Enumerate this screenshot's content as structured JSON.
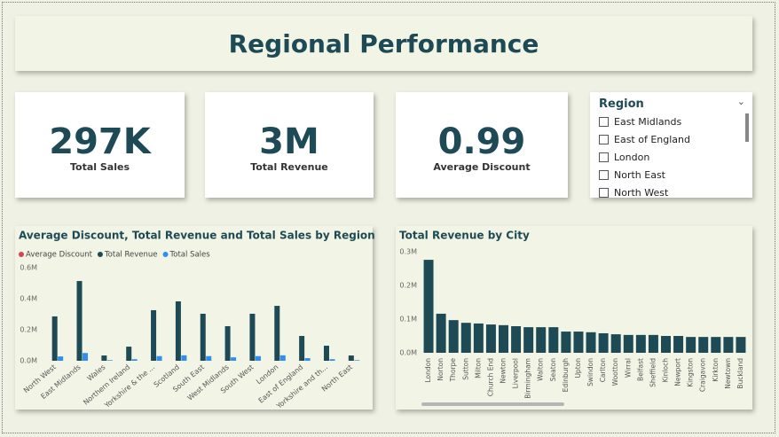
{
  "title": "Regional Performance",
  "cards": [
    {
      "value": "297K",
      "label": "Total Sales"
    },
    {
      "value": "3M",
      "label": "Total Revenue"
    },
    {
      "value": "0.99",
      "label": "Average Discount"
    }
  ],
  "slicer": {
    "title": "Region",
    "items": [
      "East Midlands",
      "East of England",
      "London",
      "North East",
      "North West"
    ]
  },
  "chart_data": [
    {
      "type": "bar",
      "title": "Average Discount, Total Revenue and Total Sales by Region",
      "categories": [
        "North West",
        "East Midlands",
        "Wales",
        "Northern Ireland",
        "Yorkshire & the ...",
        "Scotland",
        "South East",
        "West Midlands",
        "South West",
        "London",
        "East of England",
        "Yorkshire and th...",
        "North East"
      ],
      "series": [
        {
          "name": "Average Discount",
          "color": "#d64550",
          "values": [
            1,
            1,
            1,
            1,
            1,
            1,
            1,
            1,
            1,
            1,
            1,
            1,
            1
          ]
        },
        {
          "name": "Total Revenue",
          "color": "#1e4a56",
          "values": [
            286000,
            514000,
            34000,
            91000,
            326000,
            383000,
            303000,
            223000,
            303000,
            354000,
            160000,
            97000,
            34000
          ]
        },
        {
          "name": "Total Sales",
          "color": "#2f8ff0",
          "values": [
            28000,
            50000,
            4000,
            10000,
            30000,
            35000,
            30000,
            22000,
            30000,
            35000,
            17000,
            10000,
            4000
          ]
        }
      ],
      "ylim": [
        0,
        600000
      ],
      "yticks": [
        {
          "value": 0,
          "label": "0.0M"
        },
        {
          "value": 200000,
          "label": "0.2M"
        },
        {
          "value": 400000,
          "label": "0.4M"
        },
        {
          "value": 600000,
          "label": "0.6M"
        }
      ]
    },
    {
      "type": "bar",
      "title": "Total Revenue by City",
      "categories": [
        "London",
        "Norton",
        "Thorpe",
        "Sutton",
        "Milton",
        "Church End",
        "Newton",
        "Liverpool",
        "Birmingham",
        "Walton",
        "Seaton",
        "Edinburgh",
        "Upton",
        "Swindon",
        "Carlton",
        "Wootton",
        "Wirral",
        "Belfast",
        "Sheffield",
        "Kinloch",
        "Newport",
        "Kingston",
        "Craigavon",
        "Kirkton",
        "Newtown",
        "Buckland"
      ],
      "series": [
        {
          "name": "Total Revenue",
          "color": "#1e4a56",
          "values": [
            276000,
            116000,
            97000,
            89000,
            87000,
            84000,
            82000,
            79000,
            76000,
            76000,
            76000,
            63000,
            63000,
            61000,
            58000,
            55000,
            53000,
            53000,
            53000,
            50000,
            50000,
            47000,
            47000,
            47000,
            47000,
            47000
          ]
        }
      ],
      "ylim": [
        0,
        300000
      ],
      "yticks": [
        {
          "value": 0,
          "label": "0.0M"
        },
        {
          "value": 100000,
          "label": "0.1M"
        },
        {
          "value": 200000,
          "label": "0.2M"
        },
        {
          "value": 300000,
          "label": "0.3M"
        }
      ]
    }
  ]
}
